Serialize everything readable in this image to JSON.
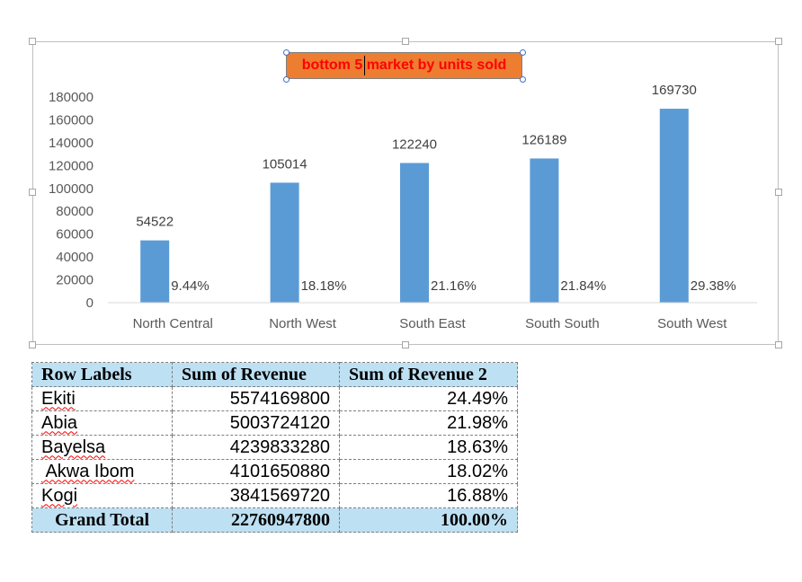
{
  "chart_data": {
    "type": "bar",
    "title": "bottom 5 market by units sold",
    "categories": [
      "North Central",
      "North West",
      "South East",
      "South South",
      "South West"
    ],
    "series": [
      {
        "values": [
          54522,
          105014,
          122240,
          126189,
          169730
        ],
        "percent_labels": [
          "9.44%",
          "18.18%",
          "21.16%",
          "21.84%",
          "29.38%"
        ],
        "color": "#5b9bd5"
      }
    ],
    "ylim": [
      0,
      180000
    ],
    "yticks": [
      "0",
      "20000",
      "40000",
      "60000",
      "80000",
      "100000",
      "120000",
      "140000",
      "160000",
      "180000"
    ],
    "grid": false,
    "legend": "none"
  },
  "pivot": {
    "headers": [
      "Row Labels",
      "Sum of Revenue",
      "Sum of Revenue 2"
    ],
    "rows": [
      {
        "label": "Ekiti",
        "revenue": "5574169800",
        "pct": "24.49%"
      },
      {
        "label": "Abia",
        "revenue": "5003724120",
        "pct": "21.98%"
      },
      {
        "label": "Bayelsa",
        "revenue": "4239833280",
        "pct": "18.63%"
      },
      {
        "label": " Akwa Ibom",
        "revenue": "4101650880",
        "pct": "18.02%"
      },
      {
        "label": "Kogi",
        "revenue": "3841569720",
        "pct": "16.88%"
      }
    ],
    "total": {
      "label": "Grand Total",
      "revenue": "22760947800",
      "pct": "100.00%"
    }
  }
}
